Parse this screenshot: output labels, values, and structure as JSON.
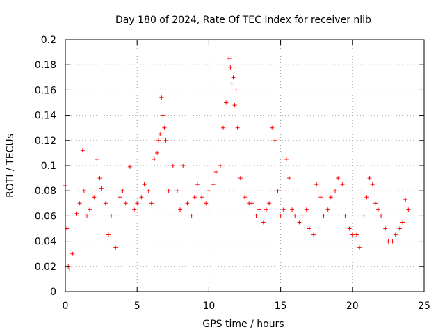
{
  "chart_data": {
    "type": "scatter",
    "title": "Day 180 of 2024, Rate Of TEC Index for receiver nlib",
    "xlabel": "GPS time / hours",
    "ylabel": "ROTI / TECUs",
    "xlim": [
      0,
      25
    ],
    "ylim": [
      0,
      0.2
    ],
    "x_ticks": [
      "0",
      "5",
      "10",
      "15",
      "20",
      "25"
    ],
    "y_ticks": [
      "0",
      "0.02",
      "0.04",
      "0.06",
      "0.08",
      "0.1",
      "0.12",
      "0.14",
      "0.16",
      "0.18",
      "0.2"
    ],
    "grid": true,
    "marker": "plus",
    "color": "#ff0000",
    "series": [
      {
        "x": [
          0.0,
          0.1,
          0.2,
          0.3,
          0.5,
          0.8,
          1.0,
          1.2,
          1.3,
          1.5,
          1.7,
          2.0,
          2.2,
          2.4,
          2.5,
          2.8,
          3.0,
          3.2,
          3.5,
          3.8,
          4.0,
          4.2,
          4.5,
          4.8,
          5.0,
          5.3,
          5.5,
          5.8,
          6.0,
          6.2,
          6.4,
          6.5,
          6.6,
          6.7,
          6.8,
          6.9,
          7.0,
          7.2,
          7.5,
          7.8,
          8.0,
          8.2,
          8.5,
          8.8,
          9.0,
          9.2,
          9.5,
          9.8,
          10.0,
          10.3,
          10.5,
          10.8,
          11.0,
          11.2,
          11.4,
          11.5,
          11.6,
          11.7,
          11.8,
          11.9,
          12.0,
          12.2,
          12.5,
          12.8,
          13.0,
          13.3,
          13.5,
          13.8,
          14.0,
          14.2,
          14.4,
          14.6,
          14.8,
          15.0,
          15.2,
          15.4,
          15.6,
          15.8,
          16.0,
          16.3,
          16.5,
          16.8,
          17.0,
          17.3,
          17.5,
          17.8,
          18.0,
          18.3,
          18.5,
          18.8,
          19.0,
          19.3,
          19.5,
          19.8,
          20.0,
          20.3,
          20.5,
          20.8,
          21.0,
          21.2,
          21.4,
          21.6,
          21.8,
          22.0,
          22.3,
          22.5,
          22.8,
          23.0,
          23.3,
          23.5,
          23.7,
          23.9
        ],
        "y": [
          0.084,
          0.05,
          0.02,
          0.018,
          0.03,
          0.062,
          0.07,
          0.112,
          0.08,
          0.06,
          0.065,
          0.075,
          0.105,
          0.09,
          0.082,
          0.07,
          0.045,
          0.06,
          0.035,
          0.075,
          0.08,
          0.07,
          0.099,
          0.065,
          0.07,
          0.075,
          0.085,
          0.08,
          0.07,
          0.105,
          0.11,
          0.12,
          0.125,
          0.154,
          0.14,
          0.13,
          0.12,
          0.08,
          0.1,
          0.08,
          0.065,
          0.1,
          0.07,
          0.06,
          0.075,
          0.085,
          0.075,
          0.07,
          0.08,
          0.085,
          0.095,
          0.1,
          0.13,
          0.15,
          0.185,
          0.178,
          0.165,
          0.17,
          0.148,
          0.16,
          0.13,
          0.09,
          0.075,
          0.07,
          0.07,
          0.06,
          0.065,
          0.055,
          0.065,
          0.07,
          0.13,
          0.12,
          0.08,
          0.06,
          0.065,
          0.105,
          0.09,
          0.065,
          0.06,
          0.055,
          0.06,
          0.065,
          0.05,
          0.045,
          0.085,
          0.075,
          0.06,
          0.065,
          0.075,
          0.08,
          0.09,
          0.085,
          0.06,
          0.05,
          0.045,
          0.045,
          0.035,
          0.06,
          0.075,
          0.09,
          0.085,
          0.07,
          0.065,
          0.06,
          0.05,
          0.04,
          0.04,
          0.045,
          0.05,
          0.055,
          0.073,
          0.065
        ]
      }
    ]
  }
}
